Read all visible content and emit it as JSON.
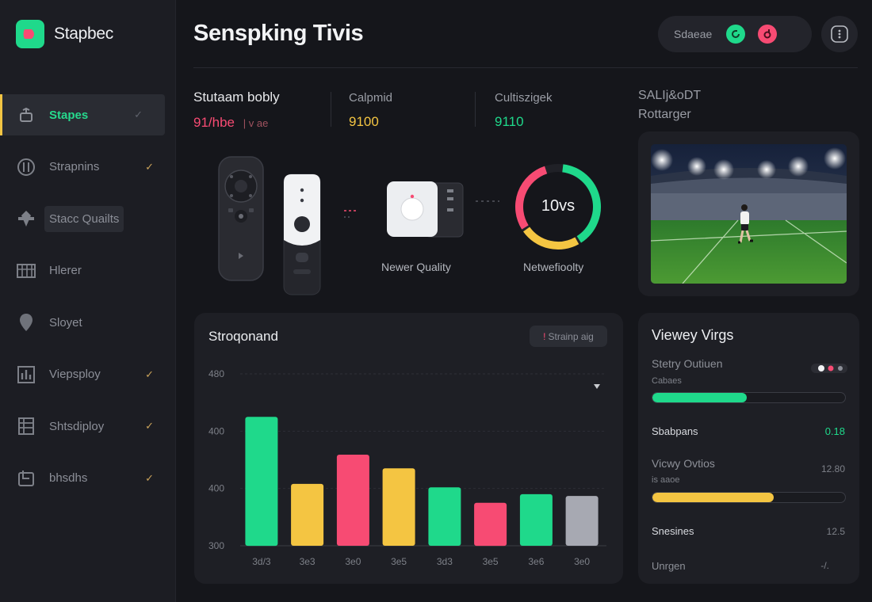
{
  "app": {
    "name": "Stapbec"
  },
  "header": {
    "title": "Senspking Tivis",
    "pill_label": "Sdaeae"
  },
  "sidebar": {
    "items": [
      {
        "label": "Stapes",
        "active": true,
        "check": "✓"
      },
      {
        "label": "Strapnins",
        "check": "✓"
      },
      {
        "label": "Stacc Quailts"
      },
      {
        "label": "Hlerer"
      },
      {
        "label": "Sloyet"
      },
      {
        "label": "Viepsploy",
        "check": "✓"
      },
      {
        "label": "Shtsdiploy",
        "check": "✓"
      },
      {
        "label": "bhsdhs",
        "check": "✓"
      }
    ]
  },
  "stats": {
    "main": {
      "label": "Stutaam bobly",
      "value_primary": "91/hbe",
      "value_secondary": "| v ae"
    },
    "second": {
      "label": "Calpmid",
      "value": "9100"
    },
    "third": {
      "label": "Cultiszigek",
      "value": "9110"
    },
    "fourth": {
      "label": "SALIj&oDT",
      "sublabel": "Rottarger"
    }
  },
  "devices": {
    "quality_caption": "Newer Quality",
    "gauge_value": "10vs",
    "gauge_caption": "Netwefioolty",
    "gauge_fraction": 0.93
  },
  "colors": {
    "green": "#1fd98b",
    "yellow": "#f4c542",
    "pink": "#f74b73",
    "gray": "#a7a9b2"
  },
  "chart_data": {
    "type": "bar",
    "title": "Stroqonand",
    "chip_label": "Strainp aig",
    "categories": [
      "3d/3",
      "3e3",
      "3e0",
      "3e5",
      "3d3",
      "3e5",
      "3e6",
      "3e0"
    ],
    "values": [
      455,
      416,
      433,
      425,
      414,
      405,
      410,
      409
    ],
    "colors": [
      "green",
      "yellow",
      "pink",
      "yellow",
      "green",
      "pink",
      "green",
      "gray"
    ],
    "y_ticks": [
      "480",
      "400",
      "400",
      "300"
    ],
    "ylim": [
      380,
      480
    ],
    "grid": true
  },
  "viewer_panel": {
    "title": "Viewey Virgs",
    "rows": [
      {
        "label": "Stetry Outiuen",
        "sublabel": "Cabaes",
        "progress": 0.49,
        "color": "green"
      },
      {
        "label": "Sbabpans",
        "value": "0.18"
      },
      {
        "label": "Vicwy Ovtios",
        "sublabel": "is aaoe",
        "value": "12.80",
        "progress": 0.63,
        "color": "yellow"
      },
      {
        "label": "Snesines",
        "value": "12.5"
      },
      {
        "label": "Unrgen",
        "value": "-/."
      }
    ]
  }
}
